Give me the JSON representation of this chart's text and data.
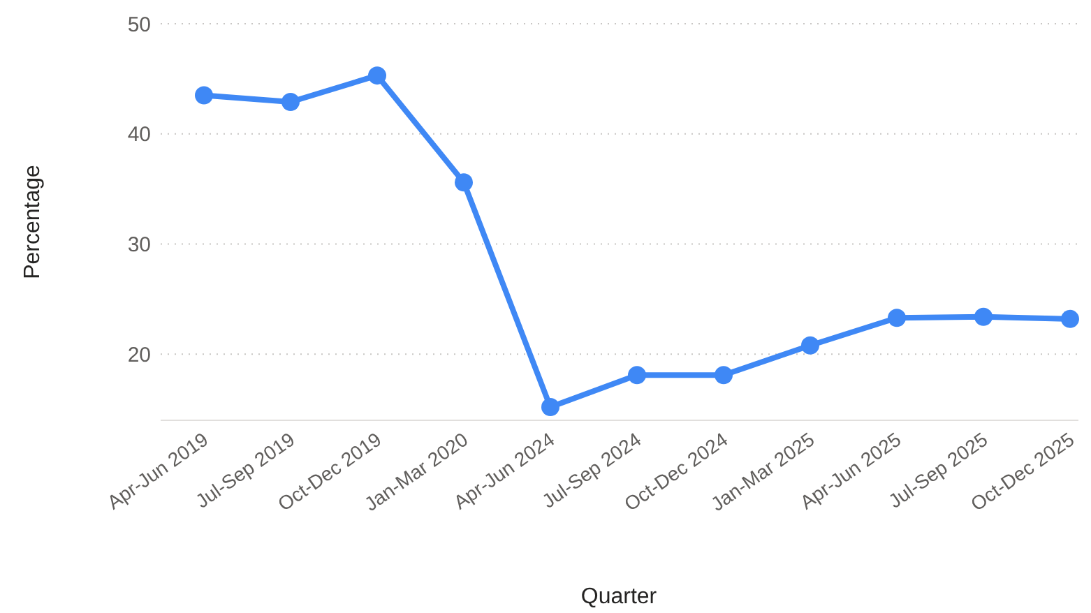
{
  "chart_data": {
    "type": "line",
    "xlabel": "Quarter",
    "ylabel": "Percentage",
    "categories": [
      "Apr-Jun 2019",
      "Jul-Sep 2019",
      "Oct-Dec 2019",
      "Jan-Mar 2020",
      "Apr-Jun 2024",
      "Jul-Sep 2024",
      "Oct-Dec 2024",
      "Jan-Mar 2025",
      "Apr-Jun 2025",
      "Jul-Sep 2025",
      "Oct-Dec 2025"
    ],
    "series": [
      {
        "color": "#3f88f5",
        "values": [
          43.5,
          42.9,
          45.3,
          35.6,
          15.2,
          18.1,
          18.1,
          20.8,
          23.3,
          23.4,
          23.2
        ]
      }
    ],
    "ylim": [
      14,
      50
    ],
    "yticks": [
      20,
      30,
      40,
      50
    ],
    "grid": "y",
    "marker": "circle",
    "line_style": "solid"
  }
}
